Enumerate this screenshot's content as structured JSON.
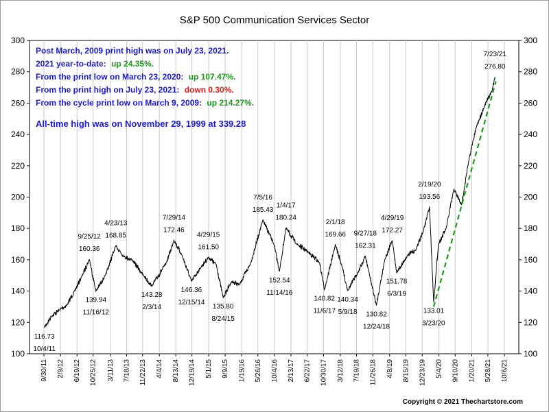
{
  "chart_data": {
    "type": "line",
    "title": "S&P 500 Communication Services Sector",
    "ylim": [
      100,
      300
    ],
    "y_ticks": [
      100,
      120,
      140,
      160,
      180,
      200,
      220,
      240,
      260,
      280,
      300
    ],
    "x_ticks": [
      "9/30/11",
      "2/9/12",
      "6/19/12",
      "10/25/12",
      "3/11/13",
      "7/18/13",
      "11/22/13",
      "4/4/14",
      "8/13/14",
      "12/19/14",
      "5/1/15",
      "9/9/15",
      "1/19/16",
      "5/26/16",
      "10/4/16",
      "2/13/17",
      "6/22/17",
      "10/30/17",
      "3/12/18",
      "7/19/18",
      "11/26/18",
      "4/8/19",
      "8/15/19",
      "12/23/19",
      "5/4/20",
      "9/10/20",
      "1/20/21",
      "5/28/21",
      "10/6/21"
    ],
    "grid": "vertical",
    "series": [
      {
        "x": [
          "10/4/11",
          "11/30/11",
          "1/31/12",
          "3/30/12",
          "5/31/12",
          "7/31/12",
          "9/25/12",
          "11/16/12",
          "1/31/13",
          "4/23/13",
          "6/28/13",
          "8/30/13",
          "11/29/13",
          "2/3/14",
          "5/30/14",
          "7/29/14",
          "9/30/14",
          "12/15/14",
          "2/27/15",
          "4/29/15",
          "6/30/15",
          "8/24/15",
          "10/30/15",
          "12/31/15",
          "3/31/16",
          "7/5/16",
          "9/30/16",
          "11/14/16",
          "1/4/17",
          "3/31/17",
          "6/30/17",
          "9/29/17",
          "11/6/17",
          "2/1/18",
          "3/29/18",
          "5/9/18",
          "7/31/18",
          "9/27/18",
          "10/31/18",
          "12/24/18",
          "2/28/19",
          "4/29/19",
          "6/3/19",
          "8/30/19",
          "10/31/19",
          "12/31/19",
          "2/19/20",
          "3/23/20",
          "4/30/20",
          "6/30/20",
          "8/31/20",
          "10/30/20",
          "12/31/20",
          "2/26/21",
          "4/30/21",
          "6/30/21",
          "7/23/21"
        ],
        "values": [
          116.73,
          124,
          128,
          131,
          140,
          150,
          160.36,
          139.94,
          150,
          168.85,
          162,
          160,
          150,
          143.28,
          158,
          172.46,
          163,
          146.36,
          155,
          161.5,
          157,
          135.8,
          146,
          144,
          158,
          185.43,
          170,
          152.54,
          180.24,
          170,
          165,
          158,
          140.82,
          169.66,
          155,
          140.34,
          152,
          162.31,
          150,
          130.82,
          160,
          172.27,
          151.78,
          163,
          166,
          178,
          193.56,
          133.01,
          170,
          180,
          205,
          195,
          225,
          245,
          258,
          268,
          276.8
        ],
        "color": "#000000"
      }
    ],
    "trendline": {
      "from_x": "3/23/20",
      "from_y": 130,
      "to_x": "7/31/21",
      "to_y": 274,
      "color": "#1a9a1a",
      "style": "dashed"
    },
    "annotations": [
      {
        "id": "a1",
        "x": "10/4/11",
        "y": 116.73,
        "lines": [
          "116.73",
          "10/4/11"
        ],
        "pos": "below"
      },
      {
        "id": "a2",
        "x": "9/25/12",
        "y": 160.36,
        "lines": [
          "9/25/12",
          "160.36"
        ],
        "pos": "above"
      },
      {
        "id": "a3",
        "x": "11/16/12",
        "y": 139.94,
        "lines": [
          "139.94",
          "11/16/12"
        ],
        "pos": "below"
      },
      {
        "id": "a4",
        "x": "4/23/13",
        "y": 168.85,
        "lines": [
          "4/23/13",
          "168.85"
        ],
        "pos": "above"
      },
      {
        "id": "a5",
        "x": "2/3/14",
        "y": 143.28,
        "lines": [
          "143.28",
          "2/3/14"
        ],
        "pos": "below"
      },
      {
        "id": "a6",
        "x": "7/29/14",
        "y": 172.46,
        "lines": [
          "7/29/14",
          "172.46"
        ],
        "pos": "above"
      },
      {
        "id": "a7",
        "x": "12/15/14",
        "y": 146.36,
        "lines": [
          "146.36",
          "12/15/14"
        ],
        "pos": "below"
      },
      {
        "id": "a8",
        "x": "4/29/15",
        "y": 161.5,
        "lines": [
          "4/29/15",
          "161.50"
        ],
        "pos": "above"
      },
      {
        "id": "a9",
        "x": "8/24/15",
        "y": 135.8,
        "lines": [
          "135.80",
          "8/24/15"
        ],
        "pos": "below"
      },
      {
        "id": "a10",
        "x": "7/5/16",
        "y": 185.43,
        "lines": [
          "7/5/16",
          "185.43"
        ],
        "pos": "above"
      },
      {
        "id": "a11",
        "x": "11/14/16",
        "y": 152.54,
        "lines": [
          "152.54",
          "11/14/16"
        ],
        "pos": "below"
      },
      {
        "id": "a12",
        "x": "1/4/17",
        "y": 180.24,
        "lines": [
          "1/4/17",
          "180.24"
        ],
        "pos": "above"
      },
      {
        "id": "a13",
        "x": "11/6/17",
        "y": 140.82,
        "lines": [
          "140.82",
          "11/6/17"
        ],
        "pos": "below"
      },
      {
        "id": "a14",
        "x": "2/1/18",
        "y": 169.66,
        "lines": [
          "2/1/18",
          "169.66"
        ],
        "pos": "above"
      },
      {
        "id": "a15",
        "x": "5/9/18",
        "y": 140.34,
        "lines": [
          "140.34",
          "5/9/18"
        ],
        "pos": "below"
      },
      {
        "id": "a16",
        "x": "9/27/18",
        "y": 162.31,
        "lines": [
          "9/27/18",
          "162.31"
        ],
        "pos": "above"
      },
      {
        "id": "a17",
        "x": "12/24/18",
        "y": 130.82,
        "lines": [
          "130.82",
          "12/24/18"
        ],
        "pos": "below"
      },
      {
        "id": "a18",
        "x": "4/29/19",
        "y": 172.27,
        "lines": [
          "4/29/19",
          "172.27"
        ],
        "pos": "above"
      },
      {
        "id": "a19",
        "x": "6/3/19",
        "y": 151.78,
        "lines": [
          "151.78",
          "6/3/19"
        ],
        "pos": "below"
      },
      {
        "id": "a20",
        "x": "2/19/20",
        "y": 193.56,
        "lines": [
          "2/19/20",
          "193.56"
        ],
        "pos": "above"
      },
      {
        "id": "a21",
        "x": "3/23/20",
        "y": 133.01,
        "lines": [
          "133.01",
          "3/23/20"
        ],
        "pos": "below"
      },
      {
        "id": "a22",
        "x": "7/23/21",
        "y": 276.8,
        "lines": [
          "7/23/21",
          "276.80"
        ],
        "pos": "above"
      }
    ]
  },
  "info_box": {
    "line1": "Post March, 2009 print high was on July 23, 2021.",
    "line2_label": "2021 year-to-date:",
    "line2_value": "up 24.35%.",
    "line3_label": "From the print low on March 23, 2020:",
    "line3_value": "up 107.47%.",
    "line4_label": "From the print high on July 23, 2021:",
    "line4_value": "down 0.30%.",
    "line5_label": "From the cycle print low on March 9, 2009:",
    "line5_value": "up 214.27%.",
    "line6": "All-time high was on November 29, 1999 at 339.28",
    "colors": {
      "label": "#1a1ad4",
      "positive": "#1a9a1a",
      "negative": "#e01b1b"
    }
  },
  "footer": {
    "copyright": "Copyright © 2021 Thechartstore.com"
  }
}
